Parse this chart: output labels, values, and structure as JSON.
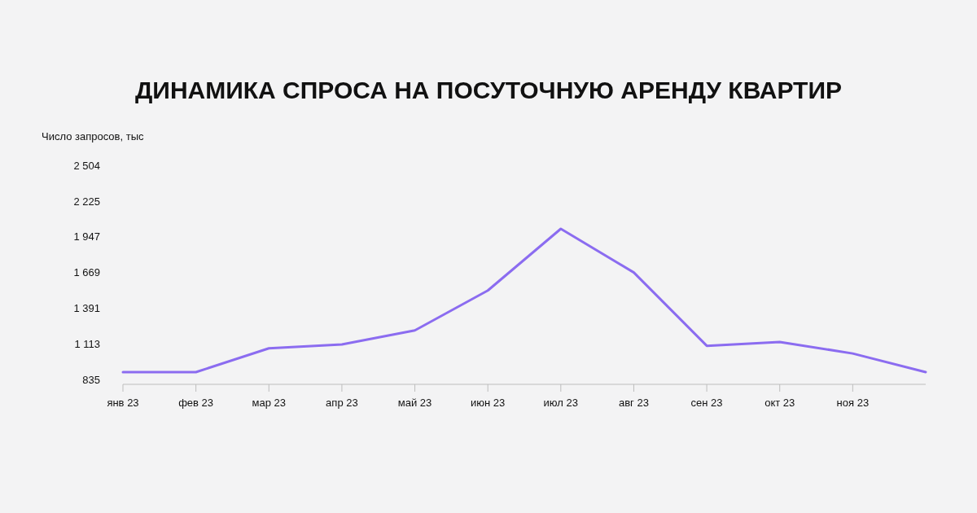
{
  "chart_data": {
    "type": "line",
    "title": "ДИНАМИКА СПРОСА НА ПОСУТОЧНУЮ АРЕНДУ КВАРТИР",
    "ylabel": "Число запросов, тыс",
    "categories": [
      "янв 23",
      "фев 23",
      "мар 23",
      "апр 23",
      "май 23",
      "июн 23",
      "июл 23",
      "авг 23",
      "сен 23",
      "окт 23",
      "ноя 23",
      null
    ],
    "series": [
      {
        "color": "#8b6cf0",
        "values": [
          895,
          895,
          1080,
          1110,
          1220,
          1530,
          2010,
          1670,
          1100,
          1130,
          1040,
          895
        ]
      }
    ],
    "ylim": [
      800,
      2504
    ],
    "yticks": [
      {
        "value": 835,
        "label": "835"
      },
      {
        "value": 1113,
        "label": "1 113"
      },
      {
        "value": 1391,
        "label": "1 391"
      },
      {
        "value": 1669,
        "label": "1 669"
      },
      {
        "value": 1947,
        "label": "1 947"
      },
      {
        "value": 2225,
        "label": "2 225"
      },
      {
        "value": 2504,
        "label": "2 504"
      }
    ],
    "line_style": "solid"
  }
}
